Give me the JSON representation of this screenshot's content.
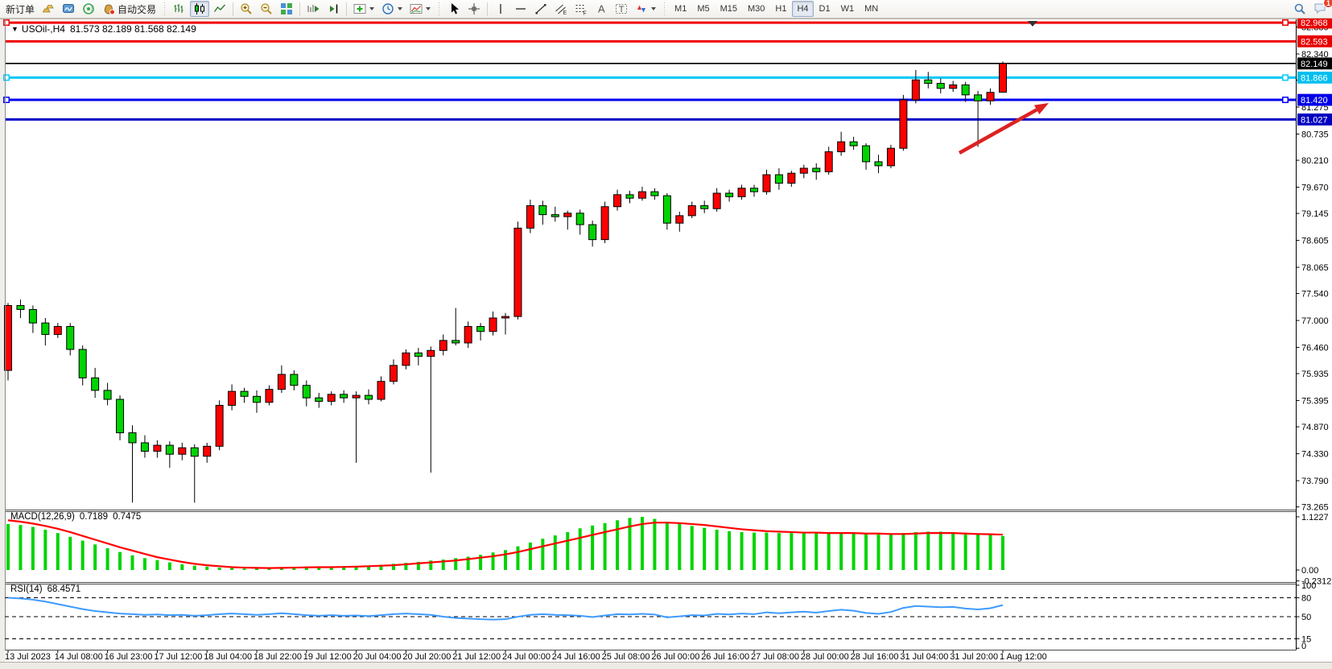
{
  "toolbar": {
    "new_order": "新订单",
    "autotrading": "自动交易",
    "timeframes": [
      "M1",
      "M5",
      "M15",
      "M30",
      "H1",
      "H4",
      "D1",
      "W1",
      "MN"
    ],
    "active_timeframe": "H4",
    "badge": "1"
  },
  "chart": {
    "symbol_label": "USOil-,H4",
    "ohlc_text": "81.573 82.189 81.568 82.149"
  },
  "chart_data": {
    "type": "candlestick",
    "title": "USOil-,H4",
    "timeframe": "H4",
    "grid": false,
    "colors": {
      "up": "#FF0000",
      "down": "#00D400",
      "wick": "#000000",
      "macd_histogram": "#00D400",
      "macd_signal": "#FF0000",
      "rsi_line": "#3E9BFF",
      "annotation_arrow": "#DD2222"
    },
    "price_axis_range": [
      72.1,
      83.0
    ],
    "price_ticks": [
      82.88,
      82.34,
      81.815,
      81.275,
      80.735,
      80.21,
      79.67,
      79.145,
      78.605,
      78.065,
      77.54,
      77.0,
      76.46,
      75.935,
      75.395,
      74.87,
      74.33,
      73.79,
      73.265
    ],
    "price_labels": [
      {
        "text": "82.968",
        "value": 82.968,
        "bg": "#E80000"
      },
      {
        "text": "82.593",
        "value": 82.593,
        "bg": "#E80000"
      },
      {
        "text": "82.149",
        "value": 82.149,
        "bg": "#000000"
      },
      {
        "text": "81.866",
        "value": 81.866,
        "bg": "#00BEEF"
      },
      {
        "text": "81.420",
        "value": 81.42,
        "bg": "#0000E8"
      },
      {
        "text": "81.027",
        "value": 81.027,
        "bg": "#0000C0"
      }
    ],
    "hlines": [
      {
        "price": 82.968,
        "color": "#F00000",
        "width": 3,
        "selected": true
      },
      {
        "price": 82.593,
        "color": "#F00000",
        "width": 3,
        "selected": false
      },
      {
        "price": 82.149,
        "color": "#000000",
        "width": 1.6,
        "selected": false,
        "bid_line": true
      },
      {
        "price": 81.866,
        "color": "#00C8F8",
        "width": 3,
        "selected": true
      },
      {
        "price": 81.42,
        "color": "#0000F0",
        "width": 3,
        "selected": true
      },
      {
        "price": 81.027,
        "color": "#0000C8",
        "width": 3,
        "selected": false
      }
    ],
    "bid": 82.149,
    "timeline": [
      "13 Jul 2023",
      "14 Jul 08:00",
      "16 Jul 23:00",
      "17 Jul 12:00",
      "18 Jul 04:00",
      "18 Jul 22:00",
      "19 Jul 12:00",
      "20 Jul 04:00",
      "20 Jul 20:00",
      "21 Jul 12:00",
      "24 Jul 00:00",
      "24 Jul 16:00",
      "25 Jul 08:00",
      "26 Jul 00:00",
      "26 Jul 16:00",
      "27 Jul 08:00",
      "28 Jul 00:00",
      "28 Jul 16:00",
      "31 Jul 04:00",
      "31 Jul 20:00",
      "1 Aug 12:00"
    ],
    "bars_per_timeline_label": 4,
    "candles": [
      [
        76.0,
        77.35,
        75.8,
        77.3
      ],
      [
        77.3,
        77.42,
        77.05,
        77.22
      ],
      [
        77.22,
        77.3,
        76.75,
        76.95
      ],
      [
        76.95,
        77.05,
        76.5,
        76.72
      ],
      [
        76.72,
        76.95,
        76.65,
        76.88
      ],
      [
        76.88,
        76.95,
        76.3,
        76.42
      ],
      [
        76.42,
        76.5,
        75.7,
        75.85
      ],
      [
        75.85,
        76.05,
        75.45,
        75.6
      ],
      [
        75.6,
        75.75,
        75.3,
        75.42
      ],
      [
        75.42,
        75.5,
        74.6,
        74.75
      ],
      [
        74.75,
        74.9,
        73.35,
        74.55
      ],
      [
        74.55,
        74.7,
        74.25,
        74.38
      ],
      [
        74.38,
        74.6,
        74.25,
        74.5
      ],
      [
        74.5,
        74.58,
        74.05,
        74.32
      ],
      [
        74.32,
        74.55,
        74.2,
        74.45
      ],
      [
        74.45,
        74.52,
        73.35,
        74.28
      ],
      [
        74.28,
        74.55,
        74.15,
        74.48
      ],
      [
        74.48,
        75.4,
        74.4,
        75.3
      ],
      [
        75.3,
        75.72,
        75.2,
        75.58
      ],
      [
        75.58,
        75.65,
        75.35,
        75.48
      ],
      [
        75.48,
        75.6,
        75.15,
        75.36
      ],
      [
        75.36,
        75.7,
        75.3,
        75.62
      ],
      [
        75.62,
        76.1,
        75.55,
        75.92
      ],
      [
        75.92,
        76.0,
        75.6,
        75.7
      ],
      [
        75.7,
        75.8,
        75.28,
        75.45
      ],
      [
        75.45,
        75.55,
        75.25,
        75.38
      ],
      [
        75.38,
        75.58,
        75.3,
        75.52
      ],
      [
        75.52,
        75.6,
        75.35,
        75.45
      ],
      [
        75.45,
        75.58,
        74.15,
        75.5
      ],
      [
        75.5,
        75.62,
        75.32,
        75.42
      ],
      [
        75.42,
        75.88,
        75.38,
        75.78
      ],
      [
        75.78,
        76.22,
        75.72,
        76.1
      ],
      [
        76.1,
        76.42,
        76.02,
        76.35
      ],
      [
        76.35,
        76.45,
        76.1,
        76.28
      ],
      [
        76.28,
        76.48,
        73.95,
        76.4
      ],
      [
        76.4,
        76.72,
        76.3,
        76.6
      ],
      [
        76.6,
        77.25,
        76.5,
        76.55
      ],
      [
        76.55,
        76.98,
        76.45,
        76.88
      ],
      [
        76.88,
        76.95,
        76.6,
        76.78
      ],
      [
        76.78,
        77.18,
        76.7,
        77.05
      ],
      [
        77.05,
        77.15,
        76.72,
        77.08
      ],
      [
        77.08,
        78.98,
        77.02,
        78.85
      ],
      [
        78.85,
        79.42,
        78.75,
        79.3
      ],
      [
        79.3,
        79.4,
        78.92,
        79.12
      ],
      [
        79.12,
        79.28,
        78.98,
        79.08
      ],
      [
        79.08,
        79.2,
        78.82,
        79.15
      ],
      [
        79.15,
        79.22,
        78.72,
        78.92
      ],
      [
        78.92,
        79.0,
        78.48,
        78.62
      ],
      [
        78.62,
        79.38,
        78.55,
        79.28
      ],
      [
        79.28,
        79.62,
        79.2,
        79.52
      ],
      [
        79.52,
        79.6,
        79.35,
        79.45
      ],
      [
        79.45,
        79.68,
        79.4,
        79.58
      ],
      [
        79.58,
        79.65,
        79.42,
        79.5
      ],
      [
        79.5,
        79.55,
        78.82,
        78.95
      ],
      [
        78.95,
        79.18,
        78.78,
        79.1
      ],
      [
        79.1,
        79.38,
        79.05,
        79.3
      ],
      [
        79.3,
        79.4,
        79.15,
        79.24
      ],
      [
        79.24,
        79.65,
        79.18,
        79.55
      ],
      [
        79.55,
        79.62,
        79.38,
        79.48
      ],
      [
        79.48,
        79.72,
        79.42,
        79.65
      ],
      [
        79.65,
        79.72,
        79.48,
        79.58
      ],
      [
        79.58,
        80.02,
        79.52,
        79.92
      ],
      [
        79.92,
        80.05,
        79.62,
        79.75
      ],
      [
        79.75,
        80.0,
        79.68,
        79.95
      ],
      [
        79.95,
        80.12,
        79.85,
        80.05
      ],
      [
        80.05,
        80.15,
        79.82,
        79.98
      ],
      [
        79.98,
        80.48,
        79.92,
        80.38
      ],
      [
        80.38,
        80.78,
        80.3,
        80.58
      ],
      [
        80.58,
        80.68,
        80.42,
        80.5
      ],
      [
        80.5,
        80.55,
        80.02,
        80.18
      ],
      [
        80.18,
        80.32,
        79.95,
        80.1
      ],
      [
        80.1,
        80.52,
        80.05,
        80.45
      ],
      [
        80.45,
        81.52,
        80.4,
        81.42
      ],
      [
        81.42,
        82.02,
        81.35,
        81.82
      ],
      [
        81.82,
        81.98,
        81.65,
        81.75
      ],
      [
        81.75,
        81.85,
        81.55,
        81.65
      ],
      [
        81.65,
        81.8,
        81.58,
        81.72
      ],
      [
        81.72,
        81.78,
        81.38,
        81.52
      ],
      [
        81.52,
        81.6,
        80.48,
        81.4
      ],
      [
        81.4,
        81.65,
        81.32,
        81.57
      ],
      [
        81.573,
        82.189,
        81.568,
        82.149
      ]
    ],
    "macd": {
      "name": "MACD(12,26,9)",
      "main_value": "0.7189",
      "signal_value": "0.7475",
      "scale": [
        {
          "text": "1.1227",
          "value": 1.1227
        },
        {
          "text": "0.00",
          "value": 0
        },
        {
          "text": "-0.2312",
          "value": -0.2312
        }
      ],
      "histogram": [
        0.97,
        0.95,
        0.91,
        0.85,
        0.78,
        0.7,
        0.62,
        0.54,
        0.46,
        0.38,
        0.31,
        0.25,
        0.21,
        0.16,
        0.12,
        0.09,
        0.07,
        0.05,
        0.04,
        0.03,
        0.03,
        0.04,
        0.05,
        0.06,
        0.065,
        0.06,
        0.06,
        0.07,
        0.08,
        0.09,
        0.11,
        0.13,
        0.15,
        0.17,
        0.2,
        0.22,
        0.25,
        0.28,
        0.32,
        0.37,
        0.42,
        0.5,
        0.58,
        0.66,
        0.73,
        0.8,
        0.88,
        0.94,
        0.99,
        1.05,
        1.1,
        1.1227,
        1.08,
        1.02,
        0.98,
        0.93,
        0.89,
        0.85,
        0.82,
        0.8,
        0.79,
        0.79,
        0.78,
        0.78,
        0.79,
        0.8,
        0.8,
        0.79,
        0.78,
        0.76,
        0.75,
        0.76,
        0.78,
        0.8,
        0.81,
        0.81,
        0.8,
        0.78,
        0.76,
        0.77,
        0.7189
      ],
      "signal": [
        1.05,
        1.02,
        0.98,
        0.93,
        0.87,
        0.8,
        0.72,
        0.64,
        0.56,
        0.48,
        0.41,
        0.34,
        0.27,
        0.22,
        0.17,
        0.13,
        0.1,
        0.08,
        0.06,
        0.05,
        0.045,
        0.04,
        0.045,
        0.05,
        0.055,
        0.06,
        0.06,
        0.065,
        0.07,
        0.08,
        0.09,
        0.1,
        0.12,
        0.14,
        0.16,
        0.18,
        0.2,
        0.23,
        0.26,
        0.29,
        0.33,
        0.38,
        0.44,
        0.5,
        0.56,
        0.62,
        0.68,
        0.74,
        0.8,
        0.86,
        0.92,
        0.97,
        1.0,
        1.0,
        0.99,
        0.97,
        0.95,
        0.92,
        0.89,
        0.86,
        0.84,
        0.82,
        0.81,
        0.8,
        0.79,
        0.79,
        0.78,
        0.78,
        0.78,
        0.77,
        0.77,
        0.76,
        0.76,
        0.77,
        0.78,
        0.78,
        0.78,
        0.77,
        0.76,
        0.755,
        0.7475
      ]
    },
    "rsi": {
      "name": "RSI(14)",
      "value": "68.4571",
      "levels": [
        80,
        50,
        15
      ],
      "scale": [
        {
          "text": "100",
          "value": 100
        },
        {
          "text": "80",
          "value": 80
        },
        {
          "text": "50",
          "value": 50
        },
        {
          "text": "15",
          "value": 15
        },
        {
          "text": "0",
          "value": 0
        }
      ],
      "values": [
        80,
        79,
        77,
        74,
        70,
        66,
        62,
        59,
        57,
        55,
        54,
        53,
        53.5,
        52.5,
        53,
        51.5,
        52.5,
        54,
        55,
        54,
        53,
        54,
        55.5,
        54,
        52.5,
        51.5,
        52.5,
        51.5,
        52,
        51,
        52.5,
        54,
        55,
        54,
        53,
        50,
        48,
        47,
        46,
        45.5,
        46,
        50,
        53,
        54,
        53,
        52.5,
        51.5,
        49.5,
        52,
        54,
        53.5,
        54.5,
        53.5,
        49,
        50.5,
        52.5,
        52,
        54.5,
        53.5,
        55,
        54,
        57,
        55.5,
        57,
        58,
        56.5,
        59,
        61,
        59.5,
        56,
        54.5,
        57.5,
        64,
        67,
        66,
        65,
        65.5,
        63,
        61.5,
        63.5,
        68.4571
      ]
    },
    "annotation_arrow": {
      "tail": [
        1192,
        190
      ],
      "head": [
        1303,
        128
      ]
    }
  }
}
